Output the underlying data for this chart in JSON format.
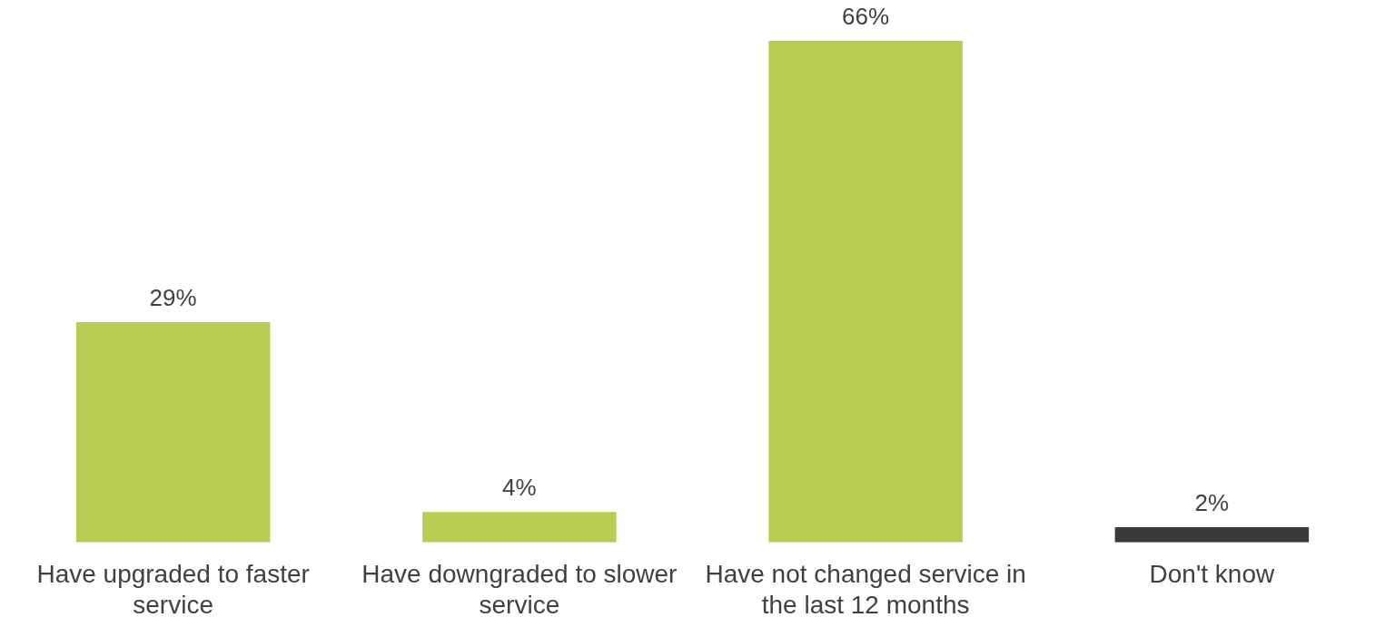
{
  "chart_data": {
    "type": "bar",
    "categories": [
      "Have upgraded to faster service",
      "Have downgraded to slower service",
      "Have not changed service in the last 12 months",
      "Don't know"
    ],
    "values": [
      29,
      4,
      66,
      2
    ],
    "colors": [
      "#b8cc53",
      "#b8cc53",
      "#b8cc53",
      "#3a3a3c"
    ],
    "value_labels": [
      "29%",
      "4%",
      "66%",
      "2%"
    ],
    "tick_labels": "x",
    "grid": false,
    "legend": false
  }
}
